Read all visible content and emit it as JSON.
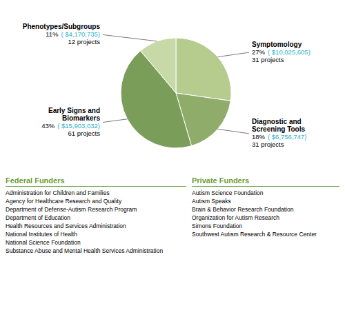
{
  "chart_data": {
    "type": "pie",
    "categories": [
      "Symptomology",
      "Diagnostic and\nScreening Tools",
      "Early Signs and\nBiomarkers",
      "Phenotypes/Subgroups"
    ],
    "values": [
      27,
      18,
      43,
      11
    ],
    "value_labels": [
      "27%",
      "18%",
      "43%",
      "11%"
    ],
    "colors": [
      "#b5cc8e",
      "#8fac6b",
      "#7a9e5a",
      "#c8d9a8"
    ],
    "annotations": {
      "amounts": [
        "( $10,025,605)",
        "( $6,756,747)",
        "( $15,903,032)",
        "( $4,170,735)"
      ],
      "projects": [
        "31 projects",
        "31 projects",
        "61 projects",
        "12 projects"
      ],
      "color": "#2ab0c8"
    },
    "panels": [
      {
        "title": "Federal Funders",
        "color": "#6a9e3a",
        "items": [
          "Administration for Children and Families",
          "Agency for Healthcare Research and Quality",
          "Department of Defense-Autism Research Program",
          "Department of Education",
          "Health Resources and Services Administration",
          "National Institutes of Health",
          "National Science Foundation",
          "Substance Abuse and Mental Health Services Administration"
        ]
      },
      {
        "title": "Private Funders",
        "color": "#6a9e3a",
        "items": [
          "Autism Science Foundation",
          "Autism Speaks",
          "Brain & Behavior Research Foundation",
          "Organization for Autism Research",
          "Simons Foundation",
          "Southwest Autism Research & Resource Center"
        ]
      }
    ]
  }
}
